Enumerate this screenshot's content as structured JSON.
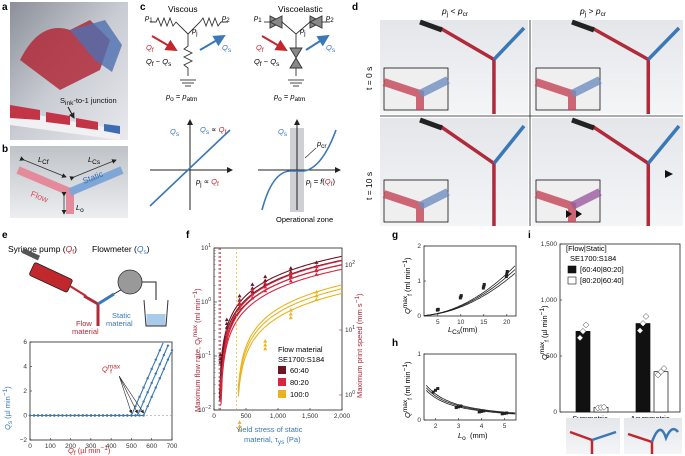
{
  "panels": {
    "a": "a",
    "b": "b",
    "c": "c",
    "d": "d",
    "e": "e",
    "f": "f",
    "g": "g",
    "h": "h",
    "i": "i"
  },
  "panel_a": {
    "junction_label": "S",
    "junction_sub": "ink",
    "junction_rest": "-to-1 junction"
  },
  "panel_b": {
    "flow": "Flow",
    "static": "Static",
    "lcf": "L",
    "lcf_sub": "Cf",
    "lcs": "L",
    "lcs_sub": "Cs",
    "lo": "L",
    "lo_sub": "o"
  },
  "panel_c": {
    "viscous": "Viscous",
    "viscoelastic": "Viscoelastic",
    "p1": "p",
    "p1_sub": "1",
    "p2": "p",
    "p2_sub": "2",
    "pj": "p",
    "pj_sub": "j",
    "qf": "Q",
    "qf_sub": "f",
    "qs": "Q",
    "qs_sub": "s",
    "qf_minus_qs": "Q",
    "po_patm": "p",
    "qs_prop": "Q",
    "pj_prop": "p",
    "pcr": "p",
    "pcr_sub": "cr",
    "pj_func": "p",
    "operational_zone": "Operational zone"
  },
  "panel_d": {
    "col1": "p",
    "col2": "p",
    "t0": "t = 0 s",
    "t10": "t = 10 s"
  },
  "panel_e": {
    "syringe": "Syringe pump (",
    "syringe_q": "Q",
    "syringe_sub": "f",
    "close": ")",
    "flowmeter": "Flowmeter (",
    "flowmeter_q": "Q",
    "flowmeter_sub": "s",
    "flow_material_1": "Flow",
    "flow_material_2": "material",
    "static_material_1": "Static",
    "static_material_2": "material",
    "qfmax": "Q",
    "qfmax_sub": "f",
    "qfmax_sup": "max"
  },
  "panel_f": {
    "legend_title_1": "Flow material",
    "legend_title_2": "SE1700:S184",
    "legend": [
      {
        "label": "60:40",
        "color": "#6e1423"
      },
      {
        "label": "80:20",
        "color": "#d7263d"
      },
      {
        "label": "100:0",
        "color": "#e8b31e"
      }
    ]
  },
  "panel_i": {
    "legend_title_1": "[Flow|Static]",
    "legend_title_2": "SE1700:S184",
    "legend": [
      {
        "label": "[60:40|80:20]",
        "color": "#111111"
      },
      {
        "label": "[80:20|60:40]",
        "color": "#ffffff"
      }
    ]
  },
  "chart_data": [
    {
      "id": "panel-e-lower",
      "type": "line",
      "xlabel": "Q",
      "xlabel_sub": "f",
      "xlabel_unit": " (µl min",
      "ylabel": "Q",
      "ylabel_sub": "s",
      "ylabel_unit": " (µl min",
      "xlim": [
        0,
        700
      ],
      "ylim": [
        -2,
        6
      ],
      "xticks": [
        "0",
        "100",
        "200",
        "300",
        "400",
        "500",
        "600",
        "700"
      ],
      "yticks": [
        "−2",
        "0",
        "2",
        "4",
        "6"
      ],
      "series": [
        {
          "name": "run1",
          "onset": 500,
          "slope": 0.038
        },
        {
          "name": "run2",
          "onset": 530,
          "slope": 0.038
        },
        {
          "name": "run3",
          "onset": 560,
          "slope": 0.038
        }
      ]
    },
    {
      "id": "panel-f",
      "type": "scatter",
      "xlabel_1": "Yield stress of static",
      "xlabel_2": "material, τ",
      "xlabel_sub": "ys",
      "xlabel_unit": " (Pa)",
      "ylabel": "Maximum flow rate, Q",
      "ylabel_sub": "f",
      "ylabel_sup": "max",
      "ylabel_unit": " (ml min",
      "y2label": "Maximum print speed (mm s",
      "xlim": [
        0,
        2000
      ],
      "ylim_log": [
        -2,
        1
      ],
      "xticks": [
        "0",
        "500",
        "1,000",
        "1,500",
        "2,000"
      ],
      "yticks": [
        "10",
        "10",
        "10",
        "10"
      ],
      "yticks_exp": [
        "−2",
        "−1",
        "0",
        "1"
      ],
      "y2ticks": [
        "10",
        "10",
        "10"
      ],
      "y2ticks_exp": [
        "0",
        "1",
        "2"
      ],
      "series": [
        {
          "name": "60:40",
          "color": "#6e1423",
          "x0": 80,
          "points": [
            [
              100,
              0.09
            ],
            [
              200,
              0.4
            ],
            [
              400,
              1.1
            ],
            [
              600,
              1.8
            ],
            [
              800,
              2.5
            ],
            [
              1200,
              3.6
            ],
            [
              1600,
              4.6
            ]
          ]
        },
        {
          "name": "80:20",
          "color": "#d7263d",
          "x0": 100,
          "points": [
            [
              100,
              0.03
            ],
            [
              200,
              0.25
            ],
            [
              400,
              0.9
            ],
            [
              600,
              1.4
            ],
            [
              800,
              1.9
            ],
            [
              1200,
              2.9
            ],
            [
              1600,
              3.8
            ]
          ]
        },
        {
          "name": "100:0",
          "color": "#e8b31e",
          "x0": 350,
          "points": [
            [
              400,
              0.005
            ],
            [
              800,
              0.16
            ],
            [
              1200,
              0.6
            ],
            [
              1600,
              1.3
            ]
          ]
        }
      ]
    },
    {
      "id": "panel-g",
      "type": "scatter",
      "ylabel": "Q",
      "ylabel_sub": "f",
      "ylabel_sup": "max",
      "ylabel_unit": " (ml min",
      "xlabel": "L",
      "xlabel_sub": "Cs",
      "xlabel_unit": " (mm)",
      "xlim": [
        2,
        22
      ],
      "ylim": [
        0,
        2
      ],
      "xticks": [
        "5",
        "10",
        "15",
        "20"
      ],
      "yticks": [
        "0",
        "1",
        "2"
      ],
      "points": [
        [
          5,
          0.18
        ],
        [
          10,
          0.55
        ],
        [
          15,
          0.85
        ],
        [
          20,
          1.2
        ]
      ]
    },
    {
      "id": "panel-h",
      "type": "scatter",
      "ylabel": "Q",
      "ylabel_sub": "f",
      "ylabel_sup": "max",
      "ylabel_unit": " (ml min",
      "xlabel": "L",
      "xlabel_sub": "o",
      "xlabel_unit": " (mm)",
      "xlim": [
        1.5,
        5.5
      ],
      "ylim": [
        0,
        1
      ],
      "xticks": [
        "2",
        "3",
        "4",
        "5"
      ],
      "yticks": [
        "0",
        "1"
      ],
      "points": [
        [
          2,
          0.45
        ],
        [
          3,
          0.2
        ],
        [
          4,
          0.13
        ],
        [
          5,
          0.1
        ]
      ]
    },
    {
      "id": "panel-i",
      "type": "bar",
      "ylabel": "Q",
      "ylabel_sub": "f",
      "ylabel_sup": "max",
      "ylabel_unit": " (µl min",
      "ylim": [
        0,
        1500
      ],
      "yticks": [
        "0",
        "500",
        "1,000",
        "1,500"
      ],
      "categories": [
        "Symmetric",
        "Asymmetric"
      ],
      "series": [
        {
          "name": "[60:40|80:20]",
          "values": [
            720,
            790
          ]
        },
        {
          "name": "[80:20|60:40]",
          "values": [
            40,
            360
          ]
        }
      ]
    }
  ]
}
